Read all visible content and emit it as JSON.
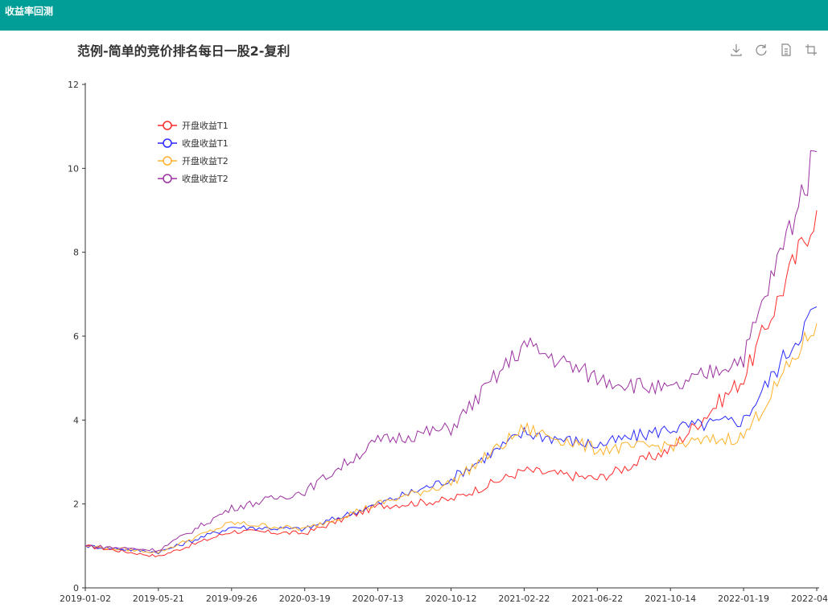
{
  "app": {
    "title": "收益率回测"
  },
  "toolbox": {
    "icons": [
      "download-icon",
      "refresh-icon",
      "data-view-icon",
      "zoom-icon",
      "zoom-reset-icon"
    ]
  },
  "colors": {
    "header_bg": "#009e96"
  },
  "chart_data": {
    "type": "line",
    "title": "范例-简单的竞价排名每日一股2-复利",
    "xlabel": "",
    "ylabel": "",
    "ylim": [
      0,
      12
    ],
    "yticks": [
      0,
      2,
      4,
      6,
      8,
      10,
      12
    ],
    "legend_position": "top-left",
    "x": [
      "2019-01-02",
      "2019-05-21",
      "2019-09-26",
      "2020-03-19",
      "2020-07-13",
      "2020-10-12",
      "2021-02-22",
      "2021-06-22",
      "2021-10-14",
      "2022-01-19",
      "2022-04-15"
    ],
    "series": [
      {
        "name": "开盘收益T1",
        "color": "#ff2a2a",
        "values": [
          1.0,
          0.75,
          1.35,
          1.3,
          1.95,
          2.1,
          2.8,
          2.6,
          3.3,
          5.0,
          9.0
        ]
      },
      {
        "name": "收盘收益T1",
        "color": "#2a2aff",
        "values": [
          1.0,
          0.85,
          1.45,
          1.4,
          2.0,
          2.6,
          3.7,
          3.4,
          3.8,
          4.0,
          6.7
        ]
      },
      {
        "name": "开盘收益T2",
        "color": "#ffb12a",
        "values": [
          1.0,
          0.85,
          1.55,
          1.4,
          2.0,
          2.5,
          3.8,
          3.3,
          3.4,
          3.6,
          6.3
        ]
      },
      {
        "name": "收盘收益T2",
        "color": "#9b30a0",
        "values": [
          1.0,
          0.9,
          1.9,
          2.3,
          3.5,
          3.8,
          5.8,
          5.0,
          4.7,
          5.5,
          10.4
        ]
      }
    ]
  }
}
